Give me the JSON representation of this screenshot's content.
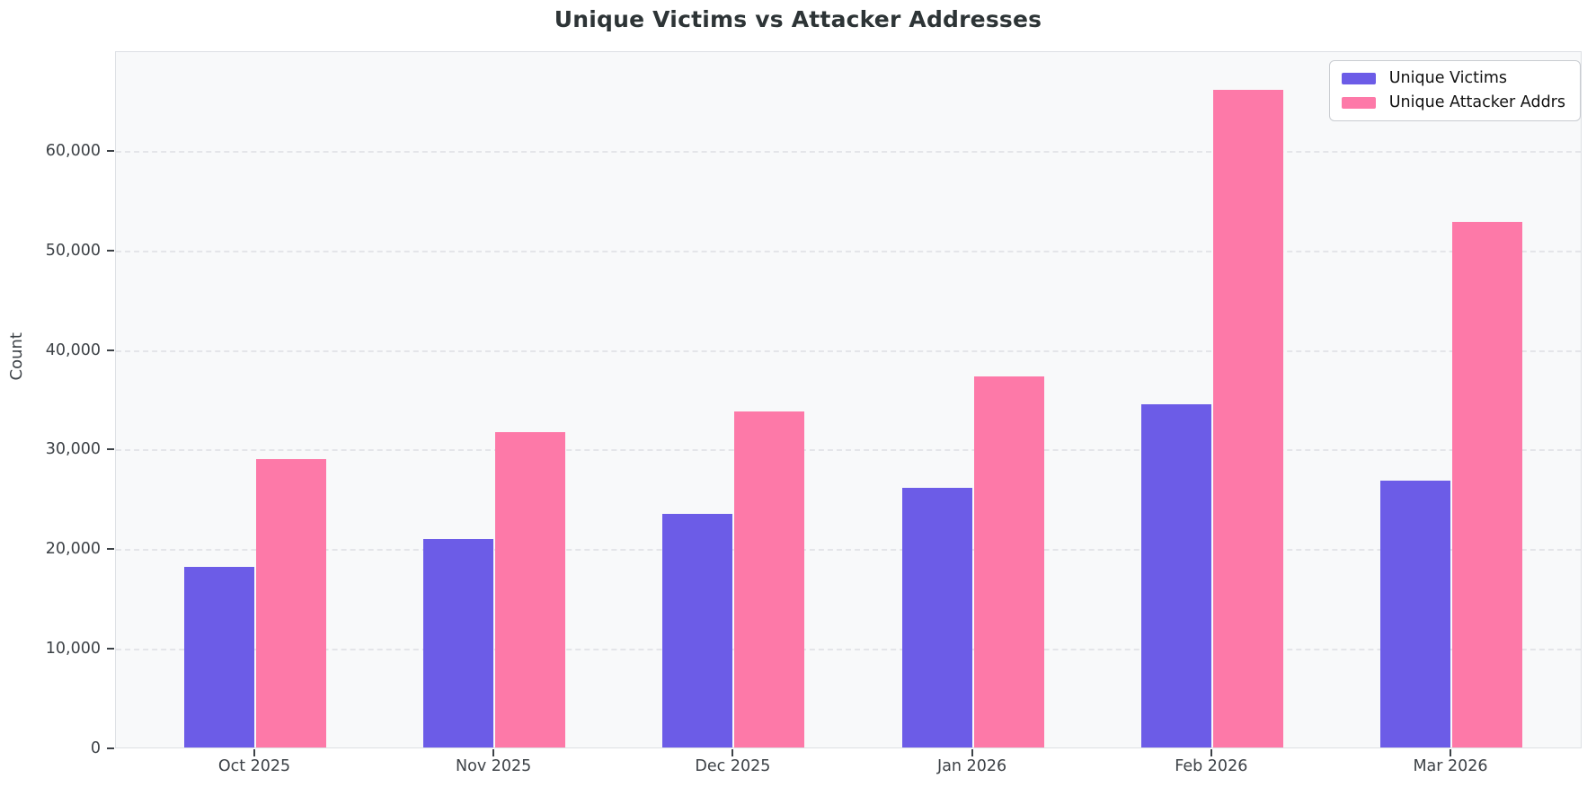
{
  "title": "Unique Victims vs Attacker Addresses",
  "y_axis_label": "Count",
  "colors": {
    "victims": "#6c5ce7",
    "attackers": "#fd79a8",
    "title_text": "#2d3436",
    "plot_background": "#f8f9fa",
    "gridline": "#e4e5e9",
    "tick_text": "#3d4247"
  },
  "legend": {
    "items": [
      {
        "label": "Unique Victims",
        "color": "#6c5ce7"
      },
      {
        "label": "Unique Attacker Addrs",
        "color": "#fd79a8"
      }
    ]
  },
  "chart_data": {
    "type": "bar",
    "title": "Unique Victims vs Attacker Addresses",
    "xlabel": "",
    "ylabel": "Count",
    "categories": [
      "Oct 2025",
      "Nov 2025",
      "Dec 2025",
      "Jan 2026",
      "Feb 2026",
      "Mar 2026"
    ],
    "series": [
      {
        "name": "Unique Victims",
        "color": "#6c5ce7",
        "values": [
          18100,
          20900,
          23500,
          26100,
          34500,
          26800
        ]
      },
      {
        "name": "Unique Attacker Addrs",
        "color": "#fd79a8",
        "values": [
          29000,
          31700,
          33700,
          37300,
          66000,
          52800
        ]
      }
    ],
    "ylim": [
      0,
      70000
    ],
    "yticks": [
      0,
      10000,
      20000,
      30000,
      40000,
      50000,
      60000
    ],
    "ytick_labels": [
      "0",
      "10,000",
      "20,000",
      "30,000",
      "40,000",
      "50,000",
      "60,000"
    ],
    "grid": "horizontal-dashed",
    "legend_position": "upper right"
  }
}
